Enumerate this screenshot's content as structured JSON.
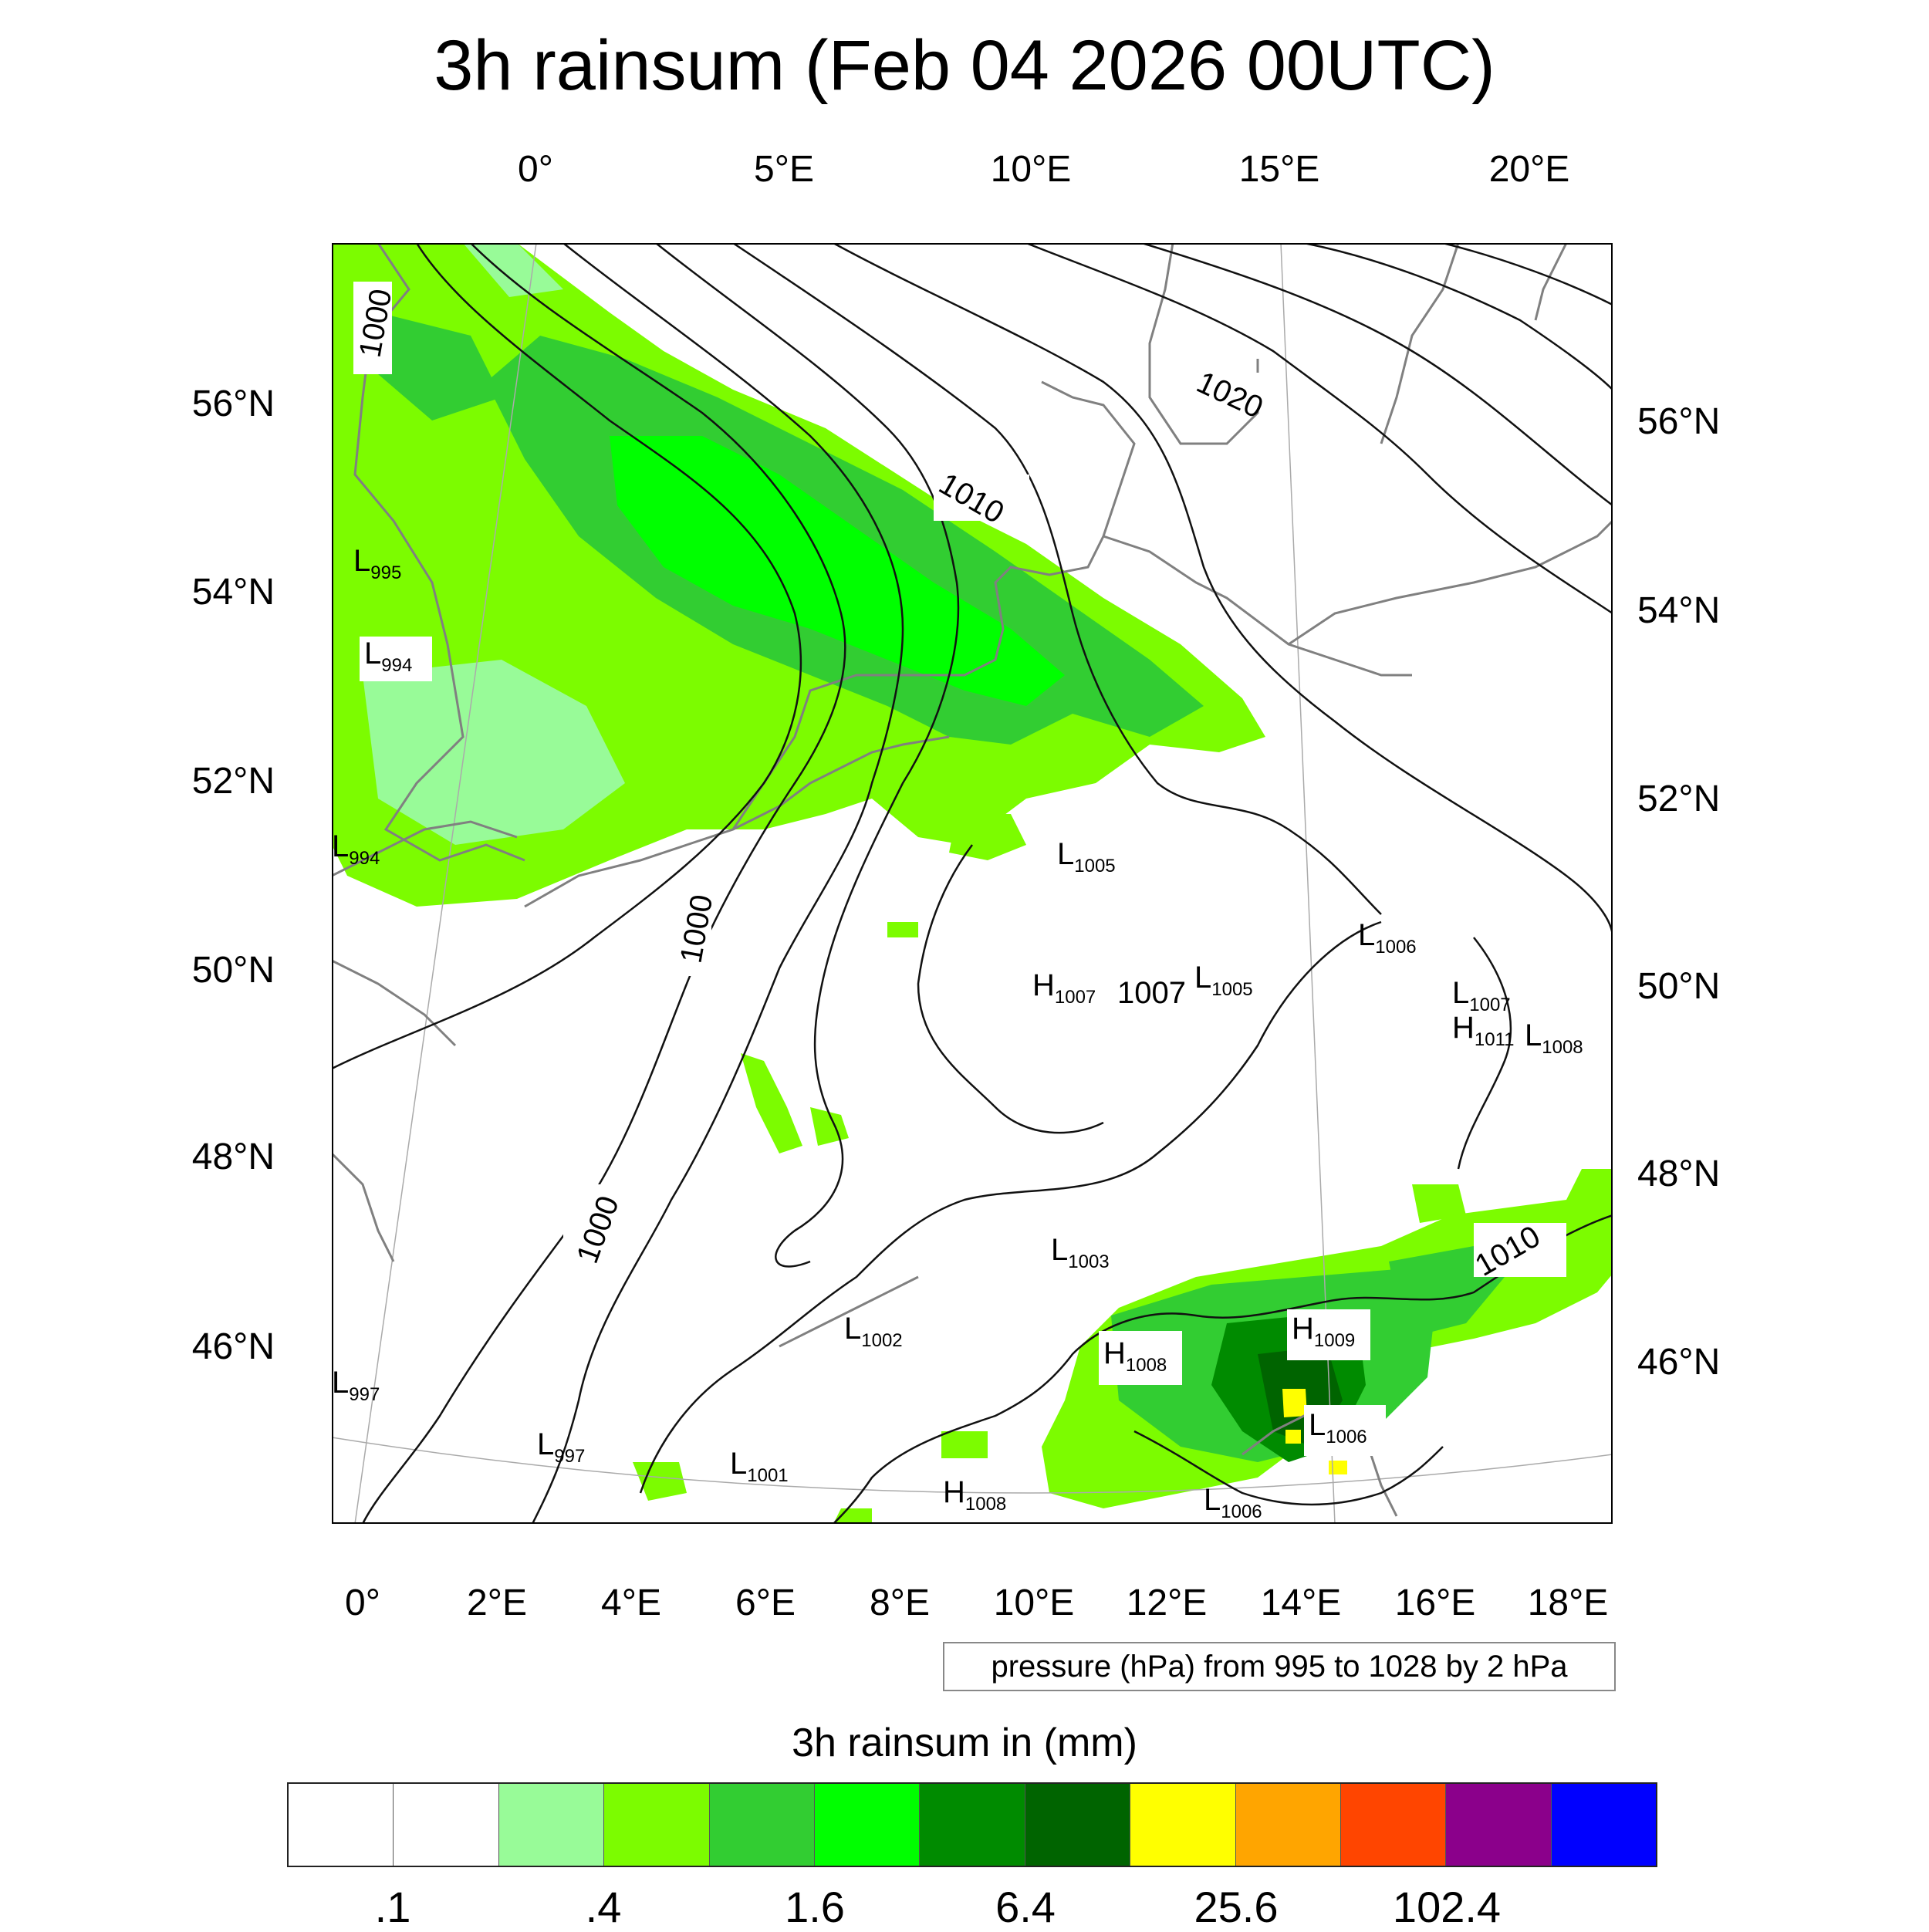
{
  "title": "3h rainsum (Feb 04 2026 00UTC)",
  "top_lon_labels": [
    "0°",
    "5°E",
    "10°E",
    "15°E",
    "20°E"
  ],
  "bottom_lon_labels": [
    "0°",
    "2°E",
    "4°E",
    "6°E",
    "8°E",
    "10°E",
    "12°E",
    "14°E",
    "16°E",
    "18°E"
  ],
  "left_lat_labels": [
    "56°N",
    "54°N",
    "52°N",
    "50°N",
    "48°N",
    "46°N"
  ],
  "right_lat_labels": [
    "56°N",
    "54°N",
    "52°N",
    "50°N",
    "48°N",
    "46°N"
  ],
  "contour_info": "pressure (hPa) from 995 to 1028 by 2 hPa",
  "colorbar": {
    "title": "3h rainsum in (mm)",
    "colors": [
      "#ffffff",
      "#ffffff",
      "#98fb98",
      "#7cfc00",
      "#32cd32",
      "#00ff00",
      "#008b00",
      "#006400",
      "#ffff00",
      "#ffa500",
      "#ff4500",
      "#8b008b",
      "#0000ff"
    ],
    "labels": [
      ".1",
      ".4",
      "1.6",
      "6.4",
      "25.6",
      "102.4"
    ]
  },
  "isobar_labels": [
    "1000",
    "1020",
    "1010",
    "1000",
    "1000",
    "1010"
  ],
  "pressure_centers": [
    {
      "type": "L",
      "value": "995"
    },
    {
      "type": "L",
      "value": "994"
    },
    {
      "type": "L",
      "value": "994"
    },
    {
      "type": "L",
      "value": "1005"
    },
    {
      "type": "L",
      "value": "1006"
    },
    {
      "type": "H",
      "value": "1007"
    },
    {
      "type": "",
      "value": "1007"
    },
    {
      "type": "L",
      "value": "1005"
    },
    {
      "type": "L",
      "value": "1007"
    },
    {
      "type": "H",
      "value": "1011"
    },
    {
      "type": "L",
      "value": "1008"
    },
    {
      "type": "L",
      "value": "1003"
    },
    {
      "type": "L",
      "value": "1002"
    },
    {
      "type": "H",
      "value": "1008"
    },
    {
      "type": "H",
      "value": "1009"
    },
    {
      "type": "L",
      "value": "997"
    },
    {
      "type": "L",
      "value": "997"
    },
    {
      "type": "L",
      "value": "1001"
    },
    {
      "type": "H",
      "value": "1008"
    },
    {
      "type": "L",
      "value": "1006"
    },
    {
      "type": "L",
      "value": "1006"
    }
  ]
}
